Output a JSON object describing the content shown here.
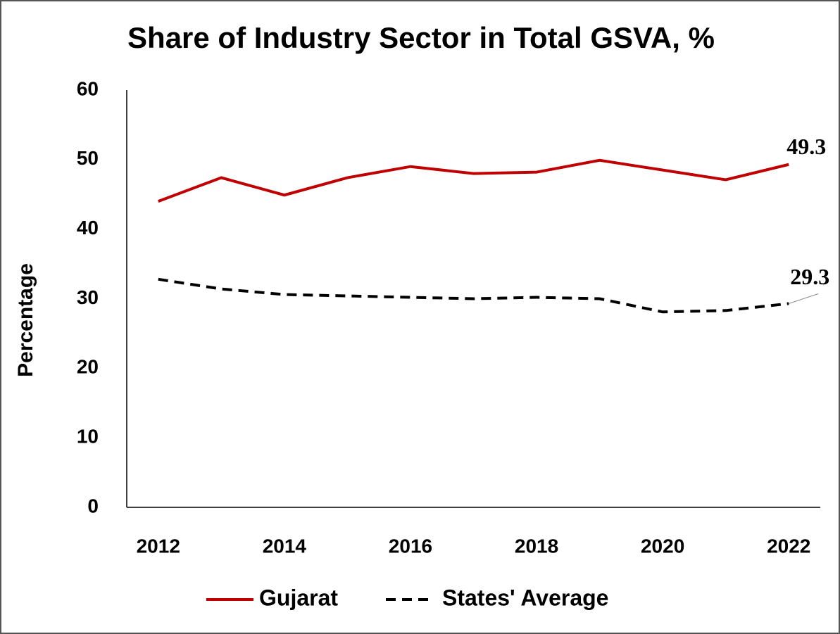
{
  "chart_data": {
    "type": "line",
    "title": "Share of Industry Sector in Total GSVA, %",
    "y_label": "Percentage",
    "x": [
      2012,
      2013,
      2014,
      2015,
      2016,
      2017,
      2018,
      2019,
      2020,
      2021,
      2022
    ],
    "series": [
      {
        "name": "Gujarat",
        "color": "#c00000",
        "dash": false,
        "values": [
          44.0,
          47.4,
          44.9,
          47.4,
          49.0,
          48.0,
          48.2,
          49.9,
          48.5,
          47.1,
          49.3
        ]
      },
      {
        "name": "States' Average",
        "color": "#000000",
        "dash": true,
        "values": [
          32.8,
          31.4,
          30.6,
          30.4,
          30.2,
          30.0,
          30.2,
          30.0,
          28.1,
          28.3,
          29.3
        ]
      }
    ],
    "xlim": [
      2011.5,
      2022.5
    ],
    "xticks": [
      2012,
      2014,
      2016,
      2018,
      2020,
      2022
    ],
    "ylim": [
      0,
      60
    ],
    "yticks": [
      0,
      10,
      20,
      30,
      40,
      50,
      60
    ],
    "grid": false,
    "legend": "bottom"
  }
}
